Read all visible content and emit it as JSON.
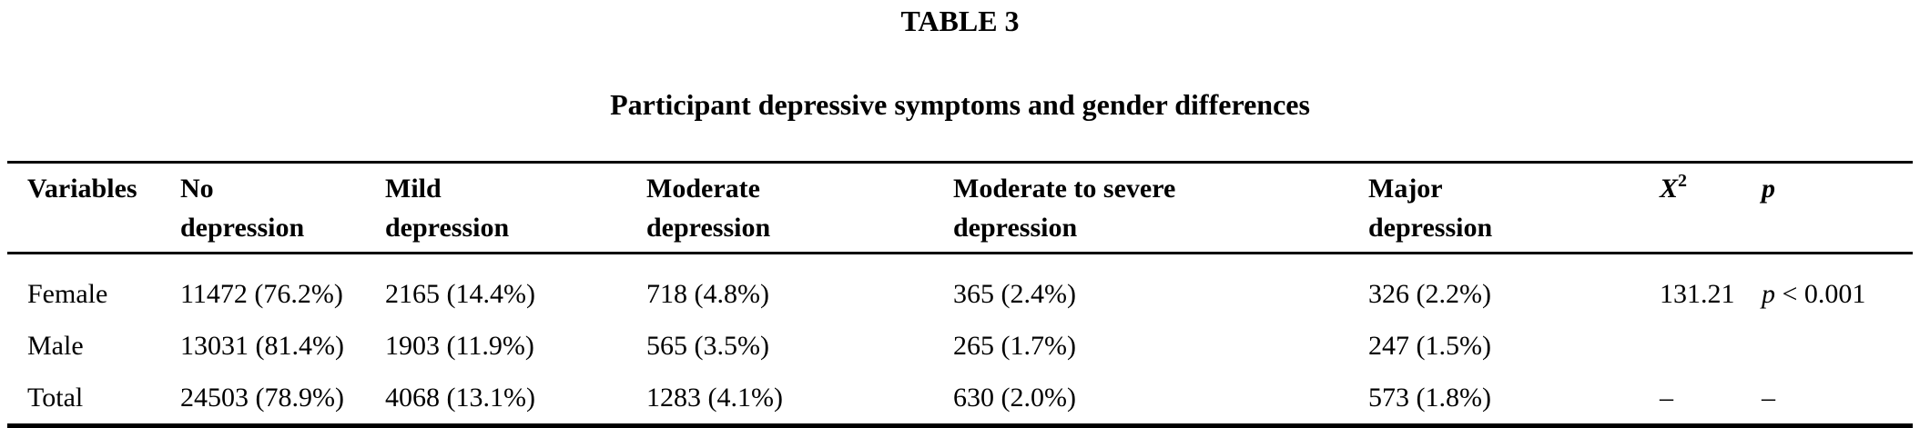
{
  "page": {
    "title": "TABLE 3",
    "caption": "Participant depressive symptoms and gender differences"
  },
  "table": {
    "headers": [
      {
        "id": "variables",
        "lines": [
          "Variables"
        ]
      },
      {
        "id": "no-depression",
        "lines": [
          "No",
          "depression"
        ]
      },
      {
        "id": "mild-depression",
        "lines": [
          "Mild",
          "depression"
        ]
      },
      {
        "id": "moderate-depression",
        "lines": [
          "Moderate",
          "depression"
        ]
      },
      {
        "id": "moderate-to-severe-depression",
        "lines": [
          "Moderate to severe",
          "depression"
        ]
      },
      {
        "id": "major-depression",
        "lines": [
          "Major",
          "depression"
        ]
      },
      {
        "id": "chi-square",
        "italic": "X",
        "sup": "2"
      },
      {
        "id": "p",
        "italic": "p"
      }
    ],
    "rows": [
      {
        "variable": "Female",
        "values": [
          "11472 (76.2%)",
          "2165 (14.4%)",
          "718 (4.8%)",
          "365 (2.4%)",
          "326 (2.2%)"
        ],
        "chi_square": "131.21",
        "p_value": {
          "italic": "p",
          "text": " < 0.001"
        }
      },
      {
        "variable": "Male",
        "values": [
          "13031 (81.4%)",
          "1903 (11.9%)",
          "565 (3.5%)",
          "265 (1.7%)",
          "247 (1.5%)"
        ],
        "chi_square": "",
        "p_value": ""
      },
      {
        "variable": "Total",
        "values": [
          "24503 (78.9%)",
          "4068 (13.1%)",
          "1283 (4.1%)",
          "630 (2.0%)",
          "573 (1.8%)"
        ],
        "chi_square": "–",
        "p_value": "–"
      }
    ]
  }
}
